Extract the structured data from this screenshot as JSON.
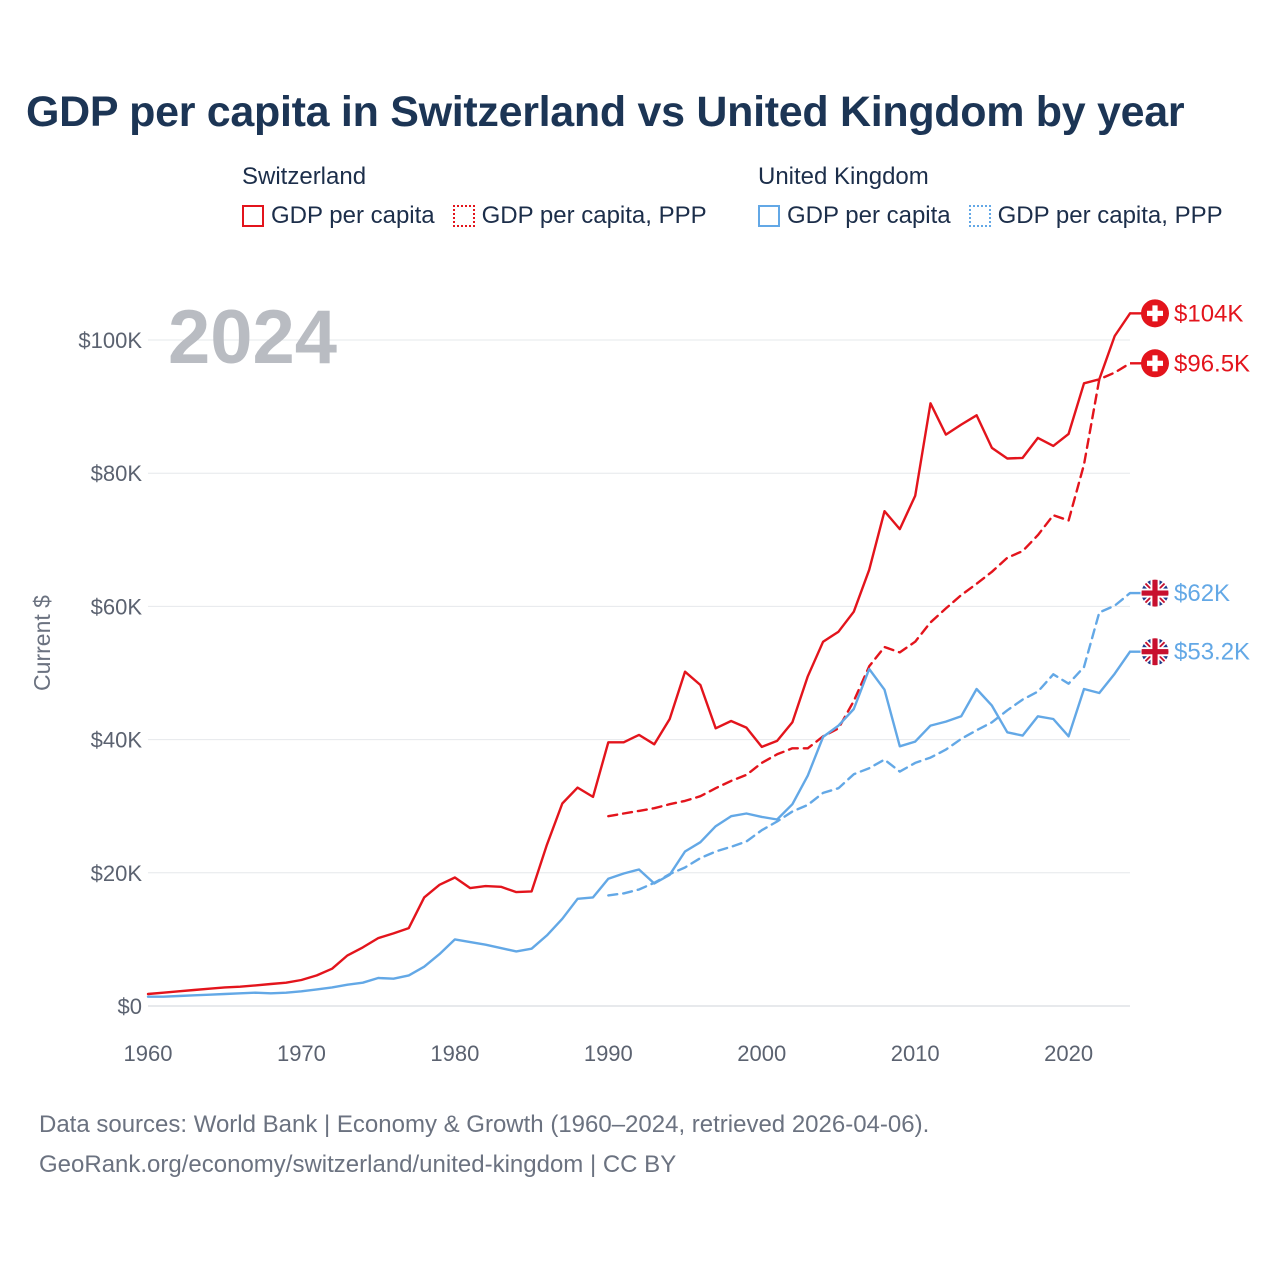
{
  "title": "GDP per capita in Switzerland vs United Kingdom by year",
  "legend": {
    "groups": [
      {
        "country": "Switzerland",
        "items": [
          {
            "label": "GDP per capita",
            "color": "#e3141c",
            "style": "solid"
          },
          {
            "label": "GDP per capita, PPP",
            "color": "#e3141c",
            "style": "dotted"
          }
        ]
      },
      {
        "country": "United Kingdom",
        "items": [
          {
            "label": "GDP per capita",
            "color": "#63a8e6",
            "style": "solid"
          },
          {
            "label": "GDP per capita, PPP",
            "color": "#63a8e6",
            "style": "dotted"
          }
        ]
      }
    ]
  },
  "source": {
    "line1": "Data sources: World Bank | Economy & Growth (1960–2024, retrieved 2026-04-06).",
    "line2": "GeoRank.org/economy/switzerland/united-kingdom | CC BY"
  },
  "chart_data": {
    "type": "line",
    "title": "GDP per capita in Switzerland vs United Kingdom by year",
    "year_label": "2024",
    "ylabel": "Current $",
    "xlim": [
      1960,
      2024
    ],
    "ylim": [
      0,
      100000
    ],
    "x_ticks": [
      1960,
      1970,
      1980,
      1990,
      2000,
      2010,
      2020
    ],
    "y_ticks": [
      {
        "value": 0,
        "label": "$0"
      },
      {
        "value": 20000,
        "label": "$20K"
      },
      {
        "value": 40000,
        "label": "$40K"
      },
      {
        "value": 60000,
        "label": "$60K"
      },
      {
        "value": 80000,
        "label": "$80K"
      },
      {
        "value": 100000,
        "label": "$100K"
      }
    ],
    "series": [
      {
        "name": "Switzerland GDP per capita",
        "color": "#e3141c",
        "dashed": false,
        "flag": "switzerland-flag-icon",
        "end_label": "$104K",
        "start_year": 1960,
        "values": [
          1800,
          2000,
          2200,
          2400,
          2600,
          2800,
          2900,
          3100,
          3300,
          3500,
          3900,
          4600,
          5600,
          7600,
          8800,
          10200,
          10900,
          11700,
          16300,
          18200,
          19300,
          17700,
          18000,
          17900,
          17100,
          17200,
          24200,
          30400,
          32800,
          31400,
          39600,
          39600,
          40700,
          39300,
          43100,
          50200,
          48200,
          41700,
          42800,
          41800,
          38900,
          39800,
          42600,
          49500,
          54700,
          56200,
          59200,
          65500,
          74300,
          71600,
          76600,
          90500,
          85800,
          87300,
          88700,
          83800,
          82200,
          82300,
          85300,
          84100,
          85900,
          93500,
          94100,
          100600,
          104000
        ]
      },
      {
        "name": "Switzerland GDP per capita, PPP",
        "color": "#e3141c",
        "dashed": true,
        "flag": "switzerland-flag-icon",
        "end_label": "$96.5K",
        "start_year": 1990,
        "values": [
          28500,
          28900,
          29300,
          29700,
          30300,
          30800,
          31500,
          32700,
          33800,
          34700,
          36500,
          37800,
          38700,
          38700,
          40500,
          41700,
          45800,
          51000,
          53900,
          53100,
          54700,
          57600,
          59700,
          61700,
          63400,
          65200,
          67300,
          68300,
          70700,
          73700,
          72900,
          81300,
          94100,
          95100,
          96500
        ]
      },
      {
        "name": "United Kingdom GDP per capita",
        "color": "#63a8e6",
        "dashed": false,
        "flag": "uk-flag-icon",
        "end_label": "$53.2K",
        "start_year": 1960,
        "values": [
          1400,
          1400,
          1500,
          1600,
          1700,
          1800,
          1900,
          2000,
          1900,
          2000,
          2200,
          2500,
          2800,
          3200,
          3500,
          4200,
          4100,
          4600,
          5900,
          7800,
          10000,
          9600,
          9200,
          8700,
          8200,
          8600,
          10600,
          13100,
          16100,
          16300,
          19100,
          19900,
          20500,
          18400,
          19700,
          23200,
          24600,
          27000,
          28500,
          28900,
          28400,
          28000,
          30300,
          34600,
          40400,
          42100,
          44600,
          50600,
          47500,
          39000,
          39700,
          42100,
          42700,
          43500,
          47600,
          45100,
          41100,
          40600,
          43500,
          43100,
          40500,
          47600,
          47000,
          49900,
          53200
        ]
      },
      {
        "name": "United Kingdom GDP per capita, PPP",
        "color": "#63a8e6",
        "dashed": true,
        "flag": "uk-flag-icon",
        "end_label": "$62K",
        "start_year": 1990,
        "values": [
          16600,
          16900,
          17500,
          18500,
          19800,
          20800,
          22200,
          23200,
          23900,
          24700,
          26400,
          27700,
          29200,
          30200,
          32000,
          32700,
          34800,
          35700,
          37000,
          35200,
          36500,
          37300,
          38500,
          40100,
          41400,
          42600,
          44400,
          46000,
          47200,
          49800,
          48400,
          50900,
          59100,
          60100,
          62000
        ]
      }
    ]
  }
}
